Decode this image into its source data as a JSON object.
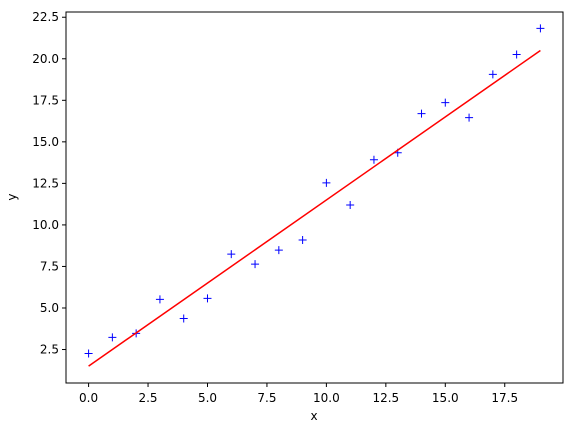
{
  "chart_data": {
    "type": "scatter",
    "xlabel": "x",
    "ylabel": "y",
    "xlim": [
      -0.95,
      19.95
    ],
    "ylim": [
      0.485,
      22.815
    ],
    "xticks": [
      {
        "value": 0,
        "label": "0.0"
      },
      2.5,
      {
        "value": 5,
        "label": "5.0"
      },
      7.5,
      {
        "value": 10,
        "label": "10.0"
      },
      12.5,
      {
        "value": 15,
        "label": "15.0"
      },
      17.5
    ],
    "yticks": [
      2.5,
      {
        "value": 5,
        "label": "5.0"
      },
      7.5,
      {
        "value": 10,
        "label": "10.0"
      },
      12.5,
      {
        "value": 15,
        "label": "15.0"
      },
      17.5,
      {
        "value": 20,
        "label": "20.0"
      },
      22.5
    ],
    "series": [
      {
        "style": "marker",
        "color": "#0000ff",
        "x": [
          0,
          1,
          2,
          3,
          4,
          5,
          6,
          7,
          8,
          9,
          10,
          11,
          12,
          13,
          14,
          15,
          16,
          17,
          18,
          19
        ],
        "values": [
          2.26,
          3.23,
          3.47,
          5.52,
          4.37,
          5.58,
          8.24,
          7.64,
          8.48,
          9.09,
          12.53,
          11.2,
          13.92,
          14.34,
          16.7,
          17.36,
          16.46,
          19.06,
          20.26,
          21.83
        ]
      },
      {
        "style": "line",
        "color": "#ff0000",
        "x": [
          0,
          19
        ],
        "values": [
          1.5,
          20.5
        ]
      }
    ]
  }
}
